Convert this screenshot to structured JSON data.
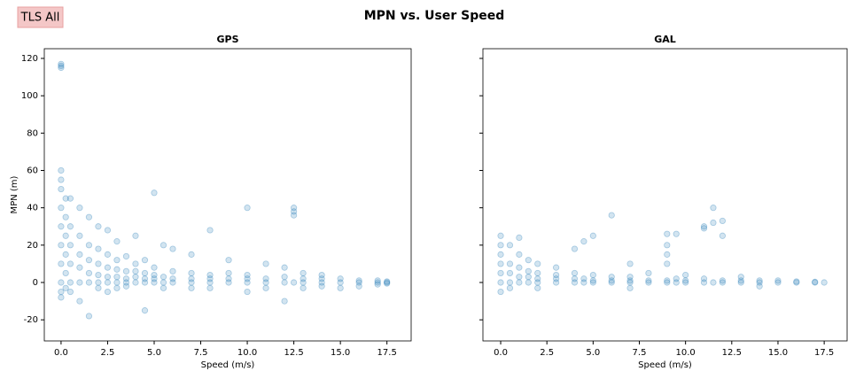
{
  "figure": {
    "title": "MPN vs. User Speed",
    "label": "TLS All"
  },
  "chart_data": [
    {
      "type": "scatter",
      "title": "GPS",
      "xlabel": "Speed (m/s)",
      "ylabel": "MPN (m)",
      "xlim": [
        -0.9,
        18.8
      ],
      "ylim": [
        -31.3,
        125.2
      ],
      "xticks": [
        {
          "value": 0,
          "label": "0.0"
        },
        2.5,
        {
          "value": 5,
          "label": "5.0"
        },
        7.5,
        {
          "value": 10,
          "label": "10.0"
        },
        12.5,
        {
          "value": 15,
          "label": "15.0"
        },
        17.5
      ],
      "yticks": [
        -20,
        0,
        20,
        40,
        60,
        80,
        100,
        120
      ],
      "series": [
        {
          "color": "#1f77b4",
          "x": [
            0,
            0,
            0,
            0,
            0,
            0,
            0,
            0,
            0,
            0,
            0,
            0,
            0,
            0.25,
            0.25,
            0.25,
            0.25,
            0.25,
            0.25,
            0.5,
            0.5,
            0.5,
            0.5,
            0.5,
            0.5,
            1,
            1,
            1,
            1,
            1,
            1,
            1.5,
            1.5,
            1.5,
            1.5,
            1.5,
            1.5,
            2,
            2,
            2,
            2,
            2,
            2,
            2.5,
            2.5,
            2.5,
            2.5,
            2.5,
            2.5,
            3,
            3,
            3,
            3,
            3,
            3,
            3.5,
            3.5,
            3.5,
            3.5,
            3.5,
            4,
            4,
            4,
            4,
            4,
            4.5,
            4.5,
            4.5,
            4.5,
            4.5,
            5,
            5,
            5,
            5,
            5,
            5.5,
            5.5,
            5.5,
            5.5,
            6,
            6,
            6,
            6,
            7,
            7,
            7,
            7,
            7,
            8,
            8,
            8,
            8,
            8,
            9,
            9,
            9,
            9,
            10,
            10,
            10,
            10,
            10,
            11,
            11,
            11,
            11,
            12,
            12,
            12,
            12,
            12.5,
            12.5,
            12.5,
            12.5,
            13,
            13,
            13,
            13,
            14,
            14,
            14,
            14,
            15,
            15,
            15,
            16,
            16,
            16,
            17,
            17,
            17,
            17.5,
            17.5,
            17.5
          ],
          "values": [
            0,
            10,
            20,
            30,
            40,
            50,
            55,
            60,
            -5,
            -8,
            116,
            117,
            115,
            5,
            15,
            25,
            35,
            45,
            -3,
            0,
            10,
            20,
            30,
            45,
            -5,
            0,
            8,
            15,
            25,
            40,
            -10,
            0,
            5,
            12,
            20,
            35,
            -18,
            0,
            4,
            10,
            18,
            30,
            -3,
            0,
            3,
            8,
            15,
            28,
            -5,
            0,
            3,
            7,
            12,
            22,
            -3,
            0,
            2,
            6,
            14,
            -2,
            0,
            3,
            6,
            10,
            25,
            0,
            2,
            5,
            12,
            -15,
            0,
            2,
            4,
            8,
            48,
            0,
            3,
            20,
            -3,
            0,
            2,
            6,
            18,
            0,
            2,
            5,
            15,
            -3,
            0,
            2,
            4,
            28,
            -3,
            0,
            2,
            5,
            12,
            0,
            2,
            4,
            40,
            -5,
            0,
            2,
            10,
            -3,
            0,
            3,
            8,
            -10,
            0,
            38,
            40,
            36,
            0,
            2,
            5,
            -3,
            0,
            2,
            4,
            -2,
            0,
            2,
            -3,
            0,
            1,
            -2,
            0,
            1,
            -1,
            0,
            0.5,
            -0.5
          ]
        }
      ]
    },
    {
      "type": "scatter",
      "title": "GAL",
      "xlabel": "Speed (m/s)",
      "sharey": true,
      "xlim": [
        -0.96,
        18.74
      ],
      "ylim": [
        -31.3,
        125.2
      ],
      "xticks": [
        {
          "value": 0,
          "label": "0.0"
        },
        2.5,
        {
          "value": 5,
          "label": "5.0"
        },
        7.5,
        {
          "value": 10,
          "label": "10.0"
        },
        12.5,
        {
          "value": 15,
          "label": "15.0"
        },
        17.5
      ],
      "series": [
        {
          "color": "#1f77b4",
          "x": [
            0,
            0,
            0,
            0,
            0,
            0,
            0,
            0.5,
            0.5,
            0.5,
            0.5,
            0.5,
            1,
            1,
            1,
            1,
            1,
            1.5,
            1.5,
            1.5,
            1.5,
            2,
            2,
            2,
            2,
            2,
            3,
            3,
            3,
            3,
            4,
            4,
            4,
            4,
            4.5,
            4.5,
            4.5,
            5,
            5,
            5,
            5,
            6,
            6,
            6,
            6,
            7,
            7,
            7,
            7,
            7,
            8,
            8,
            8,
            9,
            9,
            9,
            9,
            9,
            9,
            9.5,
            9.5,
            9.5,
            10,
            10,
            10,
            11,
            11,
            11,
            11,
            11.5,
            11.5,
            11.5,
            12,
            12,
            12,
            12,
            13,
            13,
            13,
            14,
            14,
            14,
            15,
            15,
            16,
            16,
            17,
            17,
            17.5
          ],
          "values": [
            0,
            5,
            10,
            15,
            20,
            25,
            -5,
            0,
            5,
            10,
            20,
            -3,
            0,
            3,
            8,
            15,
            24,
            0,
            3,
            6,
            12,
            0,
            2,
            5,
            10,
            -3,
            0,
            2,
            4,
            8,
            0,
            2,
            5,
            18,
            0,
            2,
            22,
            0,
            1,
            4,
            25,
            0,
            1,
            3,
            36,
            0,
            1,
            3,
            10,
            -3,
            0,
            1,
            5,
            0,
            1,
            10,
            15,
            20,
            26,
            0,
            2,
            26,
            0,
            1,
            4,
            0,
            2,
            29,
            30,
            0,
            32,
            40,
            0,
            1,
            33,
            25,
            0,
            1,
            3,
            0,
            1,
            -2,
            0,
            1,
            0,
            0.5,
            0,
            0.3,
            0
          ]
        }
      ]
    }
  ]
}
